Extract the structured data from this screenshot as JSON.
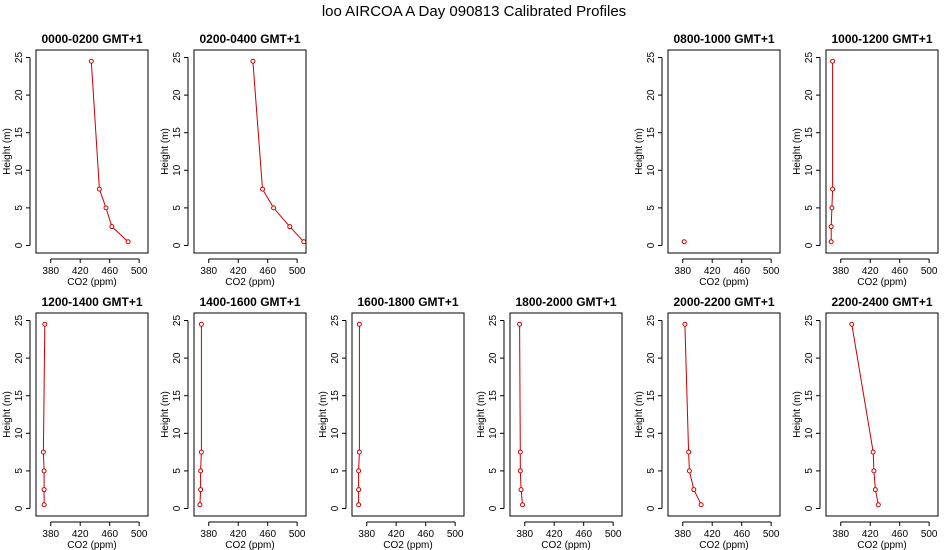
{
  "figure": {
    "title": "loo AIRCOA A  Day 090813  Calibrated Profiles",
    "line_color": "#cc0000",
    "point_color": "#cc0000"
  },
  "chart_data": [
    {
      "type": "scatter",
      "title": "0000-0200 GMT+1",
      "xlabel": "CO2 (ppm)",
      "ylabel": "Height (m)",
      "xlim": [
        360,
        512
      ],
      "ylim": [
        -1,
        26
      ],
      "xticks": [
        380,
        420,
        460,
        500
      ],
      "yticks": [
        0,
        5,
        10,
        15,
        20,
        25
      ],
      "points": [
        [
          435,
          24.5
        ],
        [
          446,
          7.5
        ],
        [
          455,
          5
        ],
        [
          463,
          2.5
        ],
        [
          485,
          0.5
        ]
      ]
    },
    {
      "type": "scatter",
      "title": "0200-0400 GMT+1",
      "xlabel": "CO2 (ppm)",
      "ylabel": "Height (m)",
      "xlim": [
        360,
        512
      ],
      "ylim": [
        -1,
        26
      ],
      "xticks": [
        380,
        420,
        460,
        500
      ],
      "yticks": [
        0,
        5,
        10,
        15,
        20,
        25
      ],
      "points": [
        [
          440,
          24.5
        ],
        [
          453,
          7.5
        ],
        [
          468,
          5
        ],
        [
          490,
          2.5
        ],
        [
          509,
          0.5
        ]
      ]
    },
    {
      "type": "scatter",
      "title": "0800-1000 GMT+1",
      "xlabel": "CO2 (ppm)",
      "ylabel": "Height (m)",
      "xlim": [
        360,
        512
      ],
      "ylim": [
        -1,
        26
      ],
      "xticks": [
        380,
        420,
        460,
        500
      ],
      "yticks": [
        0,
        5,
        10,
        15,
        20,
        25
      ],
      "points": [
        [
          382,
          0.5
        ]
      ]
    },
    {
      "type": "scatter",
      "title": "1000-1200 GMT+1",
      "xlabel": "CO2 (ppm)",
      "ylabel": "Height (m)",
      "xlim": [
        360,
        512
      ],
      "ylim": [
        -1,
        26
      ],
      "xticks": [
        380,
        420,
        460,
        500
      ],
      "yticks": [
        0,
        5,
        10,
        15,
        20,
        25
      ],
      "points": [
        [
          369,
          24.5
        ],
        [
          369,
          7.5
        ],
        [
          368,
          5
        ],
        [
          367,
          2.5
        ],
        [
          367,
          0.5
        ]
      ]
    },
    {
      "type": "scatter",
      "title": "1200-1400 GMT+1",
      "xlabel": "CO2 (ppm)",
      "ylabel": "Height (m)",
      "xlim": [
        360,
        512
      ],
      "ylim": [
        -1,
        26
      ],
      "xticks": [
        380,
        420,
        460,
        500
      ],
      "yticks": [
        0,
        5,
        10,
        15,
        20,
        25
      ],
      "points": [
        [
          372,
          24.5
        ],
        [
          370,
          7.5
        ],
        [
          371,
          5
        ],
        [
          371,
          2.5
        ],
        [
          371,
          0.5
        ]
      ]
    },
    {
      "type": "scatter",
      "title": "1400-1600 GMT+1",
      "xlabel": "CO2 (ppm)",
      "ylabel": "Height (m)",
      "xlim": [
        360,
        512
      ],
      "ylim": [
        -1,
        26
      ],
      "xticks": [
        380,
        420,
        460,
        500
      ],
      "yticks": [
        0,
        5,
        10,
        15,
        20,
        25
      ],
      "points": [
        [
          370,
          24.5
        ],
        [
          370,
          7.5
        ],
        [
          369,
          5
        ],
        [
          369,
          2.5
        ],
        [
          368,
          0.5
        ]
      ]
    },
    {
      "type": "scatter",
      "title": "1600-1800 GMT+1",
      "xlabel": "CO2 (ppm)",
      "ylabel": "Height (m)",
      "xlim": [
        360,
        512
      ],
      "ylim": [
        -1,
        26
      ],
      "xticks": [
        380,
        420,
        460,
        500
      ],
      "yticks": [
        0,
        5,
        10,
        15,
        20,
        25
      ],
      "points": [
        [
          370,
          24.5
        ],
        [
          370,
          7.5
        ],
        [
          369,
          5
        ],
        [
          369,
          2.5
        ],
        [
          369,
          0.5
        ]
      ]
    },
    {
      "type": "scatter",
      "title": "1800-2000 GMT+1",
      "xlabel": "CO2 (ppm)",
      "ylabel": "Height (m)",
      "xlim": [
        360,
        512
      ],
      "ylim": [
        -1,
        26
      ],
      "xticks": [
        380,
        420,
        460,
        500
      ],
      "yticks": [
        0,
        5,
        10,
        15,
        20,
        25
      ],
      "points": [
        [
          373,
          24.5
        ],
        [
          374,
          7.5
        ],
        [
          374,
          5
        ],
        [
          375,
          2.5
        ],
        [
          377,
          0.5
        ]
      ]
    },
    {
      "type": "scatter",
      "title": "2000-2200 GMT+1",
      "xlabel": "CO2 (ppm)",
      "ylabel": "Height (m)",
      "xlim": [
        360,
        512
      ],
      "ylim": [
        -1,
        26
      ],
      "xticks": [
        380,
        420,
        460,
        500
      ],
      "yticks": [
        0,
        5,
        10,
        15,
        20,
        25
      ],
      "points": [
        [
          383,
          24.5
        ],
        [
          388,
          7.5
        ],
        [
          389,
          5
        ],
        [
          395,
          2.5
        ],
        [
          405,
          0.5
        ]
      ]
    },
    {
      "type": "scatter",
      "title": "2200-2400 GMT+1",
      "xlabel": "CO2 (ppm)",
      "ylabel": "Height (m)",
      "xlim": [
        360,
        512
      ],
      "ylim": [
        -1,
        26
      ],
      "xticks": [
        380,
        420,
        460,
        500
      ],
      "yticks": [
        0,
        5,
        10,
        15,
        20,
        25
      ],
      "points": [
        [
          395,
          24.5
        ],
        [
          424,
          7.5
        ],
        [
          425,
          5
        ],
        [
          427,
          2.5
        ],
        [
          431,
          0.5
        ]
      ]
    }
  ]
}
